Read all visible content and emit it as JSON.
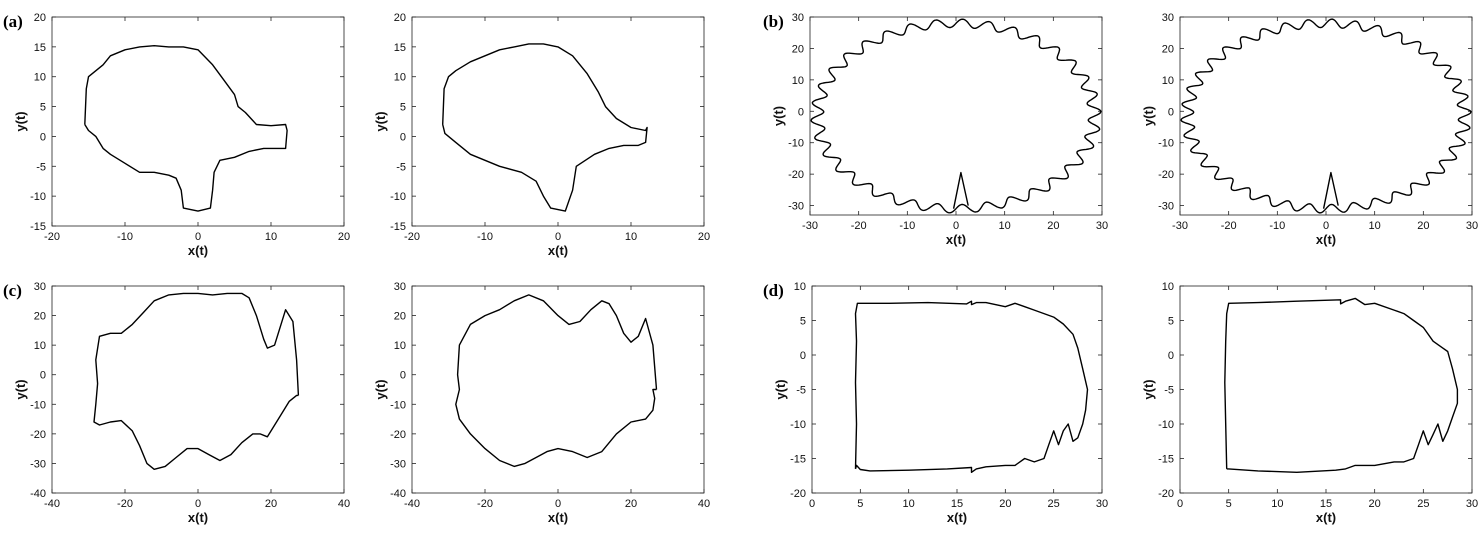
{
  "panel_labels": [
    "(a)",
    "(b)",
    "(c)",
    "(d)"
  ],
  "chart_data": [
    {
      "panel": "(a)",
      "type": "line",
      "xlabel": "x(t)",
      "ylabel": "y(t)",
      "xlim": [
        -20,
        20
      ],
      "ylim": [
        -15,
        20
      ],
      "xticks": [
        -20,
        -10,
        0,
        10,
        20
      ],
      "yticks": [
        -15,
        -10,
        -5,
        0,
        5,
        10,
        15,
        20
      ],
      "series": [
        {
          "x": [
            -15.5,
            -15.3,
            -15.0,
            -13.0,
            -12.0,
            -10.0,
            -8.0,
            -6.0,
            -4.0,
            -2.0,
            0.0,
            2.0,
            3.5,
            5.0,
            5.5,
            6.5,
            8.0,
            10.0,
            12.0,
            12.2,
            12.0,
            11.0,
            9.0,
            7.0,
            5.0,
            3.0,
            2.2,
            2.0,
            1.7,
            0.0,
            -2.0,
            -2.3,
            -3.0,
            -4.0,
            -6.0,
            -8.0,
            -10.0,
            -12.0,
            -13.0,
            -14.0,
            -15.0,
            -15.5
          ],
          "y": [
            2.0,
            8.0,
            10.0,
            12.0,
            13.5,
            14.5,
            15.0,
            15.2,
            15.0,
            15.0,
            14.5,
            12.0,
            9.5,
            7.0,
            5.0,
            4.0,
            2.0,
            1.8,
            2.0,
            1.0,
            -2.0,
            -2.0,
            -2.0,
            -2.5,
            -3.5,
            -4.0,
            -6.0,
            -9.0,
            -12.0,
            -12.5,
            -12.0,
            -9.0,
            -7.0,
            -6.5,
            -6.0,
            -6.0,
            -4.5,
            -3.0,
            -2.0,
            0.0,
            1.0,
            2.0
          ]
        }
      ]
    },
    {
      "panel": "(a)",
      "type": "line",
      "xlabel": "x(t)",
      "ylabel": "y(t)",
      "xlim": [
        -20,
        20
      ],
      "ylim": [
        -15,
        20
      ],
      "xticks": [
        -20,
        -10,
        0,
        10,
        20
      ],
      "yticks": [
        -15,
        -10,
        -5,
        0,
        5,
        10,
        15,
        20
      ],
      "series": [
        {
          "x": [
            -15.8,
            -15.6,
            -15.0,
            -14.0,
            -12.0,
            -10.0,
            -8.0,
            -6.0,
            -4.0,
            -2.0,
            0.0,
            2.0,
            4.0,
            5.5,
            6.5,
            8.0,
            10.0,
            12.0,
            12.2,
            12.0,
            11.0,
            9.0,
            7.0,
            5.0,
            2.5,
            2.0,
            1.0,
            -1.0,
            -2.0,
            -3.0,
            -5.0,
            -8.0,
            -10.0,
            -12.0,
            -14.0,
            -15.5,
            -15.8
          ],
          "y": [
            2.0,
            8.0,
            10.0,
            11.0,
            12.5,
            13.5,
            14.5,
            15.0,
            15.5,
            15.5,
            15.0,
            13.5,
            10.5,
            7.5,
            5.0,
            3.0,
            1.5,
            1.0,
            1.5,
            -1.0,
            -1.5,
            -1.5,
            -2.0,
            -3.0,
            -5.0,
            -9.0,
            -12.5,
            -12.0,
            -10.0,
            -7.5,
            -6.0,
            -5.0,
            -4.0,
            -3.0,
            -1.0,
            0.5,
            2.0
          ]
        }
      ]
    },
    {
      "panel": "(b)",
      "type": "line",
      "xlabel": "x(t)",
      "ylabel": "y(t)",
      "xlim": [
        -30,
        30
      ],
      "ylim": [
        -33,
        30
      ],
      "xticks": [
        -30,
        -20,
        -10,
        0,
        10,
        20,
        30
      ],
      "yticks": [
        -30,
        -20,
        -10,
        0,
        10,
        20,
        30
      ],
      "series": [
        {
          "param": "ellipse",
          "cx": 0.0,
          "cy": -1.5,
          "rx": 28.5,
          "ry": 29.5,
          "wobble": 1.3,
          "waves": 34,
          "spike_x": [
            -0.5,
            1.0,
            2.5
          ],
          "spike_y": [
            -31.0,
            -19.5,
            -30.0
          ]
        }
      ]
    },
    {
      "panel": "(b)",
      "type": "line",
      "xlabel": "x(t)",
      "ylabel": "y(t)",
      "xlim": [
        -30,
        30
      ],
      "ylim": [
        -33,
        30
      ],
      "xticks": [
        -30,
        -20,
        -10,
        0,
        10,
        20,
        30
      ],
      "yticks": [
        -30,
        -20,
        -10,
        0,
        10,
        20,
        30
      ],
      "series": [
        {
          "param": "ellipse",
          "cx": 0.0,
          "cy": -1.5,
          "rx": 28.5,
          "ry": 29.5,
          "wobble": 1.3,
          "waves": 38,
          "spike_x": [
            -0.5,
            1.0,
            2.5
          ],
          "spike_y": [
            -31.0,
            -19.5,
            -30.0
          ]
        }
      ]
    },
    {
      "panel": "(c)",
      "type": "line",
      "xlabel": "x(t)",
      "ylabel": "y(t)",
      "xlim": [
        -40,
        40
      ],
      "ylim": [
        -40,
        30
      ],
      "xticks": [
        -40,
        -20,
        0,
        20,
        40
      ],
      "yticks": [
        -40,
        -30,
        -20,
        -10,
        0,
        10,
        20,
        30
      ],
      "series": [
        {
          "x": [
            27.5,
            27.0,
            26.0,
            24.0,
            21.0,
            19.0,
            18.0,
            16.0,
            14.0,
            12.0,
            8.0,
            4.0,
            0.0,
            -4.0,
            -8.0,
            -12.0,
            -15.0,
            -18.0,
            -21.0,
            -24.0,
            -27.0,
            -28.0,
            -27.5,
            -28.0,
            -28.5,
            -27.0,
            -24.0,
            -21.0,
            -18.0,
            -16.0,
            -14.0,
            -12.0,
            -9.0,
            -6.0,
            -3.0,
            0.0,
            3.0,
            6.0,
            9.0,
            12.0,
            15.0,
            17.0,
            19.0,
            22.0,
            25.0,
            27.0,
            27.5
          ],
          "y": [
            -7.0,
            5.0,
            18.0,
            22.0,
            10.0,
            9.0,
            12.0,
            20.0,
            26.0,
            27.5,
            27.5,
            27.0,
            27.5,
            27.5,
            27.0,
            25.0,
            21.0,
            17.0,
            14.0,
            14.0,
            13.0,
            5.0,
            -3.0,
            -10.0,
            -16.0,
            -17.0,
            -16.0,
            -15.5,
            -19.0,
            -24.0,
            -30.0,
            -32.0,
            -31.0,
            -28.0,
            -25.0,
            -25.0,
            -27.0,
            -29.0,
            -27.0,
            -23.0,
            -20.0,
            -20.0,
            -21.0,
            -15.0,
            -9.0,
            -7.0,
            -7.0
          ]
        }
      ]
    },
    {
      "panel": "(c)",
      "type": "line",
      "xlabel": "x(t)",
      "ylabel": "y(t)",
      "xlim": [
        -40,
        40
      ],
      "ylim": [
        -40,
        30
      ],
      "xticks": [
        -40,
        -20,
        0,
        20,
        40
      ],
      "yticks": [
        -40,
        -30,
        -20,
        -10,
        0,
        10,
        20,
        30
      ],
      "series": [
        {
          "x": [
            27.0,
            26.0,
            24.0,
            22.0,
            20.0,
            18.0,
            16.0,
            14.0,
            12.0,
            9.0,
            6.0,
            3.0,
            0.0,
            -4.0,
            -8.0,
            -12.0,
            -16.0,
            -20.0,
            -24.0,
            -27.0,
            -27.5,
            -27.0,
            -28.0,
            -27.0,
            -24.0,
            -20.0,
            -16.0,
            -12.0,
            -9.0,
            -6.0,
            -3.0,
            0.0,
            4.0,
            8.0,
            12.0,
            16.0,
            20.0,
            24.0,
            26.0,
            26.5,
            26.0,
            27.0
          ],
          "y": [
            -5.0,
            10.0,
            19.0,
            13.0,
            11.0,
            14.0,
            20.0,
            24.0,
            25.0,
            22.0,
            18.0,
            17.0,
            20.0,
            25.0,
            27.0,
            25.0,
            22.0,
            20.0,
            17.0,
            10.0,
            0.0,
            -5.0,
            -10.0,
            -15.0,
            -20.0,
            -25.0,
            -29.0,
            -31.0,
            -30.0,
            -28.0,
            -26.0,
            -25.0,
            -26.0,
            -28.0,
            -26.0,
            -20.0,
            -16.0,
            -15.0,
            -12.0,
            -8.0,
            -5.0,
            -5.0
          ]
        }
      ]
    },
    {
      "panel": "(d)",
      "type": "line",
      "xlabel": "x(t)",
      "ylabel": "y(t)",
      "xlim": [
        0,
        30
      ],
      "ylim": [
        -20,
        10
      ],
      "xticks": [
        0,
        5,
        10,
        15,
        20,
        25,
        30
      ],
      "yticks": [
        -20,
        -15,
        -10,
        -5,
        0,
        5,
        10
      ],
      "series": [
        {
          "x": [
            4.5,
            4.6,
            4.5,
            4.6,
            4.5,
            4.7,
            5.0,
            8.0,
            12.0,
            16.0,
            16.5,
            16.5,
            17.0,
            18.0,
            20.0,
            21.0,
            22.0,
            23.0,
            24.0,
            25.0,
            26.0,
            27.0,
            27.5,
            28.0,
            28.5,
            28.3,
            28.0,
            27.5,
            27.0,
            26.5,
            26.0,
            25.5,
            25.0,
            24.5,
            24.0,
            23.0,
            22.0,
            21.0,
            20.0,
            18.0,
            17.0,
            16.5,
            16.5,
            14.0,
            10.0,
            6.0,
            5.0,
            4.6,
            4.5
          ],
          "y": [
            -16.5,
            -10.0,
            -4.0,
            2.0,
            6.0,
            7.5,
            7.5,
            7.5,
            7.6,
            7.4,
            7.8,
            7.3,
            7.6,
            7.6,
            7.0,
            7.5,
            7.0,
            6.5,
            6.0,
            5.5,
            4.5,
            3.0,
            1.0,
            -2.0,
            -5.0,
            -8.0,
            -10.0,
            -12.0,
            -12.5,
            -10.0,
            -11.0,
            -13.0,
            -11.0,
            -13.0,
            -15.0,
            -15.5,
            -15.0,
            -16.0,
            -16.0,
            -16.2,
            -16.5,
            -17.0,
            -16.3,
            -16.5,
            -16.7,
            -16.8,
            -16.6,
            -16.0,
            -16.5
          ]
        }
      ]
    },
    {
      "panel": "(d)",
      "type": "line",
      "xlabel": "x(t)",
      "ylabel": "y(t)",
      "xlim": [
        0,
        30
      ],
      "ylim": [
        -20,
        10
      ],
      "xticks": [
        0,
        5,
        10,
        15,
        20,
        25,
        30
      ],
      "yticks": [
        -20,
        -15,
        -10,
        -5,
        0,
        5,
        10
      ],
      "series": [
        {
          "x": [
            4.8,
            4.7,
            4.6,
            4.7,
            4.8,
            5.0,
            8.0,
            12.0,
            16.5,
            16.5,
            17.0,
            18.0,
            19.0,
            20.0,
            22.0,
            23.0,
            24.0,
            25.0,
            26.0,
            27.0,
            27.5,
            28.0,
            28.5,
            28.5,
            28.0,
            27.5,
            27.0,
            26.5,
            26.0,
            25.5,
            25.0,
            24.5,
            24.0,
            23.0,
            22.0,
            20.0,
            18.0,
            17.0,
            16.0,
            12.0,
            8.0,
            5.0,
            4.8
          ],
          "y": [
            -16.5,
            -10.0,
            -4.0,
            2.0,
            6.0,
            7.5,
            7.6,
            7.8,
            8.0,
            7.4,
            7.8,
            8.2,
            7.3,
            7.5,
            6.5,
            6.0,
            5.0,
            4.0,
            2.0,
            1.0,
            0.5,
            -2.0,
            -5.0,
            -7.0,
            -9.0,
            -11.0,
            -12.5,
            -10.0,
            -11.5,
            -13.0,
            -11.0,
            -13.0,
            -15.0,
            -15.5,
            -15.5,
            -16.0,
            -16.0,
            -16.5,
            -16.7,
            -17.0,
            -16.8,
            -16.5,
            -16.5
          ]
        }
      ]
    }
  ]
}
